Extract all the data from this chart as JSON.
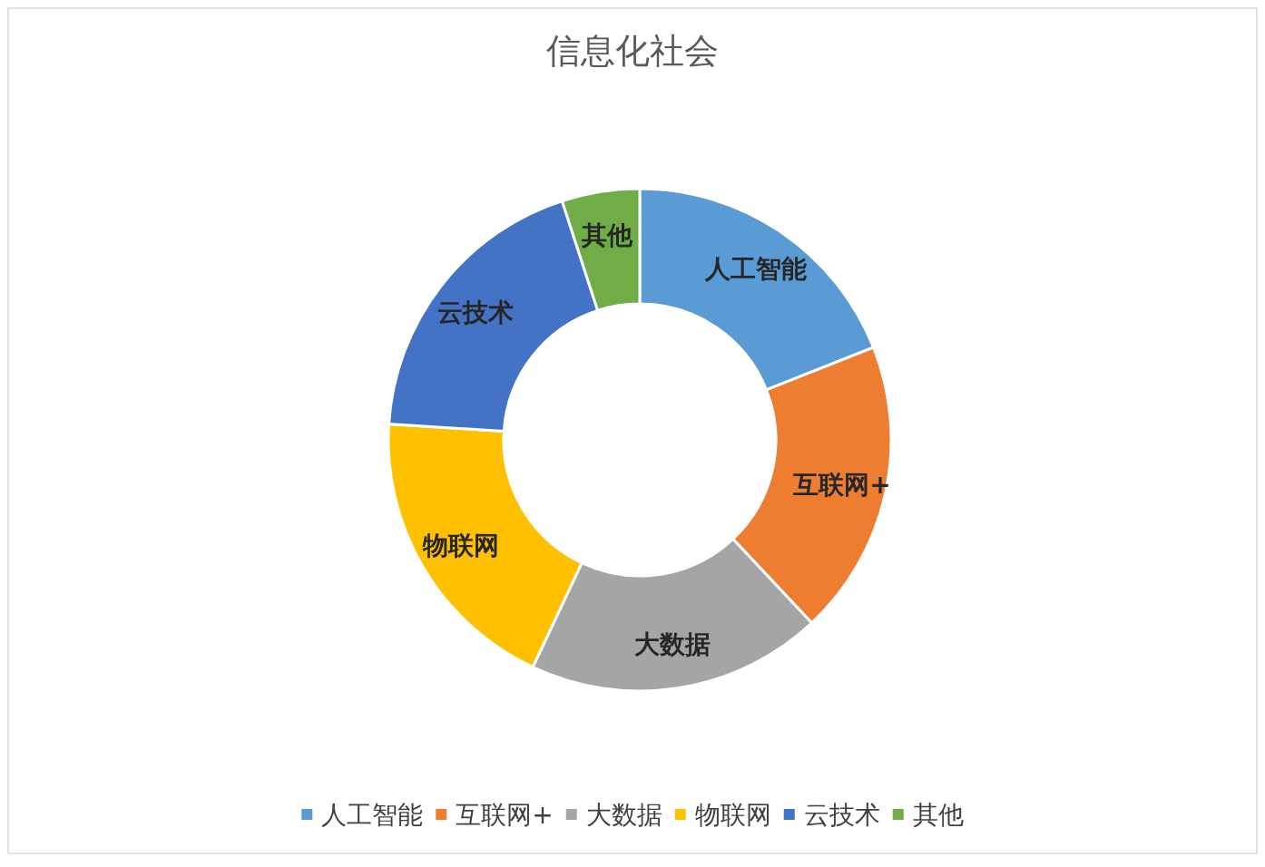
{
  "chart_data": {
    "type": "donut",
    "title": "信息化社会",
    "categories": [
      "人工智能",
      "互联网+",
      "大数据",
      "物联网",
      "云技术",
      "其他"
    ],
    "values": [
      19,
      19,
      19,
      19,
      19,
      5
    ],
    "colors": [
      "#5b9bd5",
      "#ed7d31",
      "#a5a5a5",
      "#ffc000",
      "#4472c4",
      "#70ad47"
    ],
    "legend": "bottom"
  }
}
